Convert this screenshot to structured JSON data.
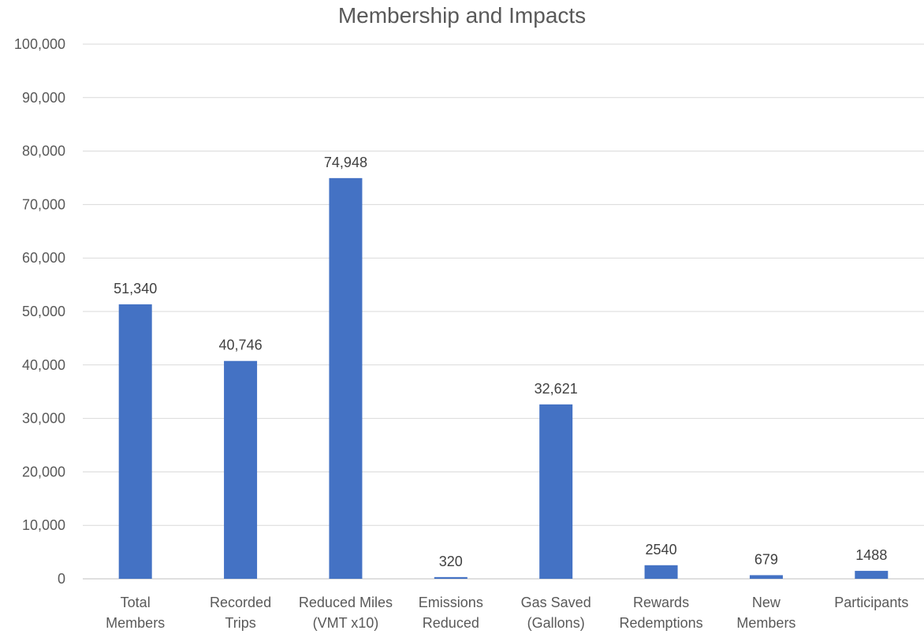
{
  "chart_data": {
    "type": "bar",
    "title": "Membership and Impacts",
    "xlabel": "",
    "ylabel": "",
    "ylim": [
      0,
      100000
    ],
    "yticks": [
      0,
      10000,
      20000,
      30000,
      40000,
      50000,
      60000,
      70000,
      80000,
      90000,
      100000
    ],
    "ytick_labels": [
      "0",
      "10,000",
      "20,000",
      "30,000",
      "40,000",
      "50,000",
      "60,000",
      "70,000",
      "80,000",
      "90,000",
      "100,000"
    ],
    "grid": true,
    "legend": "none",
    "bar_color": "#4472C4",
    "categories": [
      [
        "Total",
        "Members"
      ],
      [
        "Recorded",
        "Trips"
      ],
      [
        "Reduced Miles",
        "(VMT x10)"
      ],
      [
        "Emissions",
        "Reduced"
      ],
      [
        "Gas Saved",
        "(Gallons)"
      ],
      [
        "Rewards",
        "Redemptions"
      ],
      [
        "New",
        "Members"
      ],
      [
        "Participants"
      ]
    ],
    "values": [
      51340,
      40746,
      74948,
      320,
      32621,
      2540,
      679,
      1488
    ],
    "data_labels": [
      "51,340",
      "40,746",
      "74,948",
      "320",
      "32,621",
      "2540",
      "679",
      "1488"
    ]
  }
}
